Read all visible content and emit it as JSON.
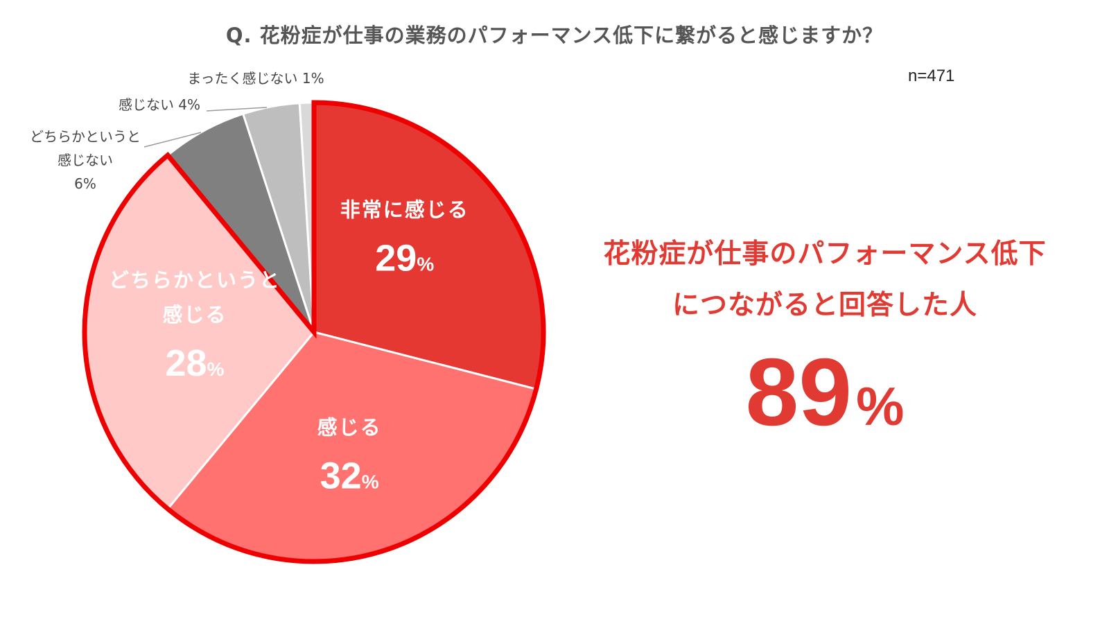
{
  "title": "Q.  花粉症が仕事の業務のパフォーマンス低下に繋がると感じますか？",
  "sample_size": "n=471",
  "highlight": {
    "line1": "花粉症が仕事のパフォーマンス低下",
    "line2": "につながると回答した人",
    "value": "89",
    "unit": "%"
  },
  "colors": {
    "title": "#555555",
    "accent": "#e03a32",
    "outline": "#ee0000"
  },
  "chart_data": {
    "type": "pie",
    "title": "Q.  花粉症が仕事の業務のパフォーマンス低下に繋がると感じますか？",
    "slices": [
      {
        "label": "非常に感じる",
        "label_lines": [
          "非常に感じる"
        ],
        "value": 29,
        "value_text": "29",
        "color": "#e53832",
        "text_color": "#ffffff",
        "label_placement": "inside"
      },
      {
        "label": "感じる",
        "label_lines": [
          "感じる"
        ],
        "value": 32,
        "value_text": "32",
        "color": "#ff7270",
        "text_color": "#ffffff",
        "label_placement": "inside"
      },
      {
        "label": "どちらかというと感じる",
        "label_lines": [
          "どちらかというと",
          "感じる"
        ],
        "value": 28,
        "value_text": "28",
        "color": "#ffc9c8",
        "text_color": "#ffffff",
        "label_placement": "inside"
      },
      {
        "label": "どちらかというと感じない",
        "label_lines": [
          "どちらかというと",
          "感じない",
          "6%"
        ],
        "value": 6,
        "value_text": "6",
        "color": "#808080",
        "text_color": "#444444",
        "label_placement": "outside"
      },
      {
        "label": "感じない",
        "label_lines": [
          "感じない 4%"
        ],
        "value": 4,
        "value_text": "4",
        "color": "#bebebe",
        "text_color": "#444444",
        "label_placement": "outside"
      },
      {
        "label": "まったく感じない",
        "label_lines": [
          "まったく感じない 1%"
        ],
        "value": 1,
        "value_text": "1",
        "color": "#d9d9d9",
        "text_color": "#444444",
        "label_placement": "outside"
      }
    ],
    "unit": "%",
    "highlighted_group": [
      "非常に感じる",
      "感じる",
      "どちらかというと感じる"
    ],
    "highlighted_total": 89
  }
}
